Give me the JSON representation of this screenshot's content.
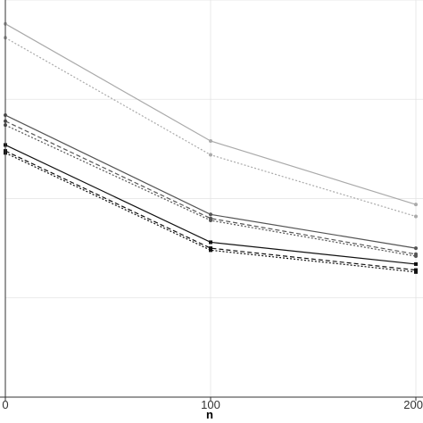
{
  "chart_data": {
    "type": "line",
    "xlabel": "n",
    "ylabel": "",
    "x": [
      0,
      100,
      200
    ],
    "xticks": [
      "0",
      "100",
      "200"
    ],
    "xlim": [
      0,
      200
    ],
    "ylim": [
      0,
      1
    ],
    "grid": true,
    "background": "#ffffff",
    "gridColor": "#e3e3e3",
    "series": [
      {
        "values": [
          0.94,
          0.645,
          0.485
        ],
        "color": "#aaaaaa",
        "dash": "solid",
        "marker": "circle"
      },
      {
        "values": [
          0.905,
          0.61,
          0.455
        ],
        "color": "#aaaaaa",
        "dash": "dotted",
        "marker": "circle"
      },
      {
        "values": [
          0.71,
          0.46,
          0.375
        ],
        "color": "#555555",
        "dash": "solid",
        "marker": "circle"
      },
      {
        "values": [
          0.695,
          0.45,
          0.36
        ],
        "color": "#555555",
        "dash": "dashed",
        "marker": "circle"
      },
      {
        "values": [
          0.685,
          0.445,
          0.355
        ],
        "color": "#555555",
        "dash": "dotted",
        "marker": "circle"
      },
      {
        "values": [
          0.635,
          0.39,
          0.335
        ],
        "color": "#111111",
        "dash": "solid",
        "marker": "square"
      },
      {
        "values": [
          0.62,
          0.375,
          0.32
        ],
        "color": "#111111",
        "dash": "dashed",
        "marker": "square"
      },
      {
        "values": [
          0.615,
          0.37,
          0.315
        ],
        "color": "#111111",
        "dash": "dotted",
        "marker": "square"
      }
    ]
  }
}
